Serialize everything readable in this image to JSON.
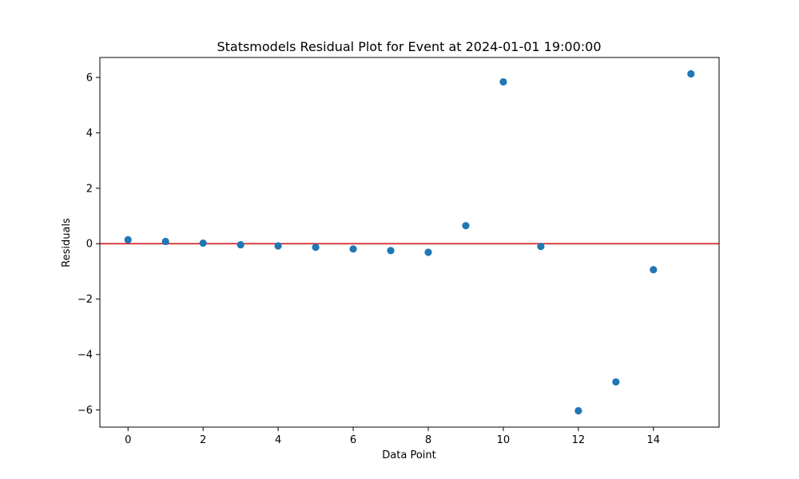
{
  "chart_data": {
    "type": "scatter",
    "title": "Statsmodels Residual Plot for Event at 2024-01-01 19:00:00",
    "xlabel": "Data Point",
    "ylabel": "Residuals",
    "xlim": [
      -0.75,
      15.75
    ],
    "ylim": [
      -6.62,
      6.72
    ],
    "xticks": [
      0,
      2,
      4,
      6,
      8,
      10,
      12,
      14
    ],
    "xtick_labels": [
      "0",
      "2",
      "4",
      "6",
      "8",
      "10",
      "12",
      "14"
    ],
    "yticks": [
      -6,
      -4,
      -2,
      0,
      2,
      4,
      6
    ],
    "ytick_labels": [
      "−6",
      "−4",
      "−2",
      "0",
      "2",
      "4",
      "6"
    ],
    "grid": false,
    "point_color": "#1f77b4",
    "reference_line": {
      "y": 0,
      "color": "#d62728"
    },
    "points": [
      {
        "x": 0,
        "y": 0.14
      },
      {
        "x": 1,
        "y": 0.08
      },
      {
        "x": 2,
        "y": 0.02
      },
      {
        "x": 3,
        "y": -0.04
      },
      {
        "x": 4,
        "y": -0.08
      },
      {
        "x": 5,
        "y": -0.13
      },
      {
        "x": 6,
        "y": -0.19
      },
      {
        "x": 7,
        "y": -0.25
      },
      {
        "x": 8,
        "y": -0.31
      },
      {
        "x": 9,
        "y": 0.65
      },
      {
        "x": 10,
        "y": 5.84
      },
      {
        "x": 11,
        "y": -0.1
      },
      {
        "x": 12,
        "y": -6.03
      },
      {
        "x": 13,
        "y": -4.99
      },
      {
        "x": 14,
        "y": -0.94
      },
      {
        "x": 15,
        "y": 6.13
      }
    ]
  }
}
